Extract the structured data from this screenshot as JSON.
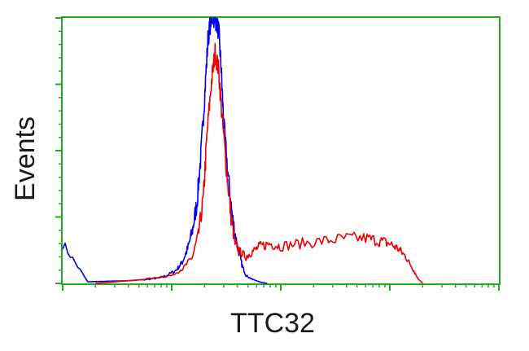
{
  "chart_data": {
    "type": "line",
    "title": "",
    "xlabel": "TTC32",
    "ylabel": "Events",
    "x_scale": "log",
    "xlim": [
      1,
      10000
    ],
    "ylim": [
      0,
      100
    ],
    "grid": false,
    "legend": "none",
    "tick_labels_shown": false,
    "frame_color": "#22aa22",
    "series": [
      {
        "color": "#0000ee",
        "x": [
          1,
          1.7,
          2.5,
          4.0,
          6.0,
          7.5,
          9.0,
          11,
          12.5,
          14,
          15.5,
          17,
          18.5,
          20,
          21.5,
          23,
          25,
          27,
          28.5,
          30,
          33,
          36,
          40,
          44,
          48,
          55,
          65,
          75
        ],
        "y": [
          15,
          0.6,
          0.8,
          1,
          1.5,
          2,
          3,
          5,
          8,
          13,
          20,
          30,
          48,
          70,
          92,
          100,
          100,
          95,
          80,
          60,
          40,
          25,
          14,
          7,
          3,
          1.5,
          0.5,
          0
        ]
      },
      {
        "color": "#ee0000",
        "x": [
          2.0,
          4.0,
          7.0,
          10,
          13,
          15.5,
          17.5,
          19.5,
          21,
          23,
          25,
          27,
          29,
          32,
          35,
          38,
          42,
          48,
          55,
          65,
          80,
          100,
          150,
          250,
          400,
          600,
          800,
          1000,
          1200,
          1400,
          1600,
          1800,
          2000
        ],
        "y": [
          0,
          1,
          2,
          3,
          6,
          10,
          18,
          32,
          55,
          75,
          87,
          80,
          62,
          42,
          25,
          15,
          12,
          10,
          12,
          14,
          15,
          14,
          15,
          16,
          17,
          17,
          16,
          15,
          13,
          10,
          6,
          2,
          0
        ]
      }
    ]
  }
}
